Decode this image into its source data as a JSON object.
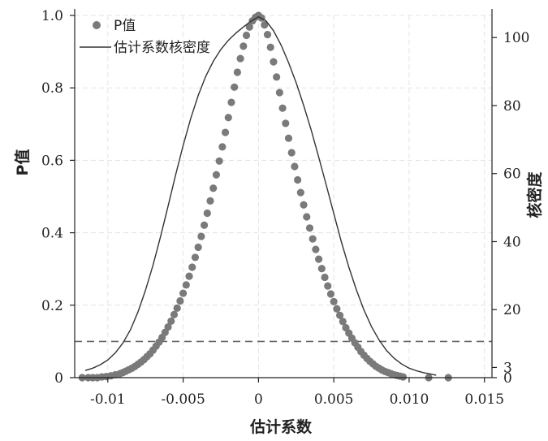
{
  "chart_data": {
    "type": "scatter",
    "xlabel": "估计系数",
    "ylabel_left": "P值",
    "ylabel_right": "核密度",
    "xlim": [
      -0.0122,
      0.0155
    ],
    "ylim_left": [
      0,
      1.0
    ],
    "ylim_right": [
      0,
      106.5
    ],
    "xticks": [
      "-0.01",
      "-0.005",
      "0",
      "0.005",
      "0.010",
      "0.015"
    ],
    "xtick_values": [
      -0.01,
      -0.005,
      0,
      0.005,
      0.01,
      0.015
    ],
    "yticks_left": [
      "0",
      "0.2",
      "0.4",
      "0.6",
      "0.8",
      "1.0"
    ],
    "ytick_values_left": [
      0,
      0.2,
      0.4,
      0.6,
      0.8,
      1.0
    ],
    "yticks_right": [
      "0",
      "3",
      "20",
      "40",
      "60",
      "80",
      "100"
    ],
    "ytick_values_right": [
      0,
      3,
      20,
      40,
      60,
      80,
      100
    ],
    "grid": true,
    "legend_position": "top-left",
    "reference_line": {
      "axis": "left",
      "value": 0.1,
      "style": "dashed"
    },
    "series": [
      {
        "name": "P值",
        "kind": "points",
        "axis": "left",
        "color": "#7a7a7a",
        "x": [
          -0.0117,
          -0.0113,
          -0.011,
          -0.0107,
          -0.0104,
          -0.0101,
          -0.0098,
          -0.0095,
          -0.0092,
          -0.009,
          -0.0088,
          -0.0086,
          -0.0084,
          -0.0082,
          -0.008,
          -0.0078,
          -0.0076,
          -0.0074,
          -0.0072,
          -0.007,
          -0.0068,
          -0.0066,
          -0.0064,
          -0.0062,
          -0.006,
          -0.0058,
          -0.0056,
          -0.0054,
          -0.0052,
          -0.005,
          -0.0048,
          -0.0046,
          -0.0044,
          -0.0042,
          -0.004,
          -0.0038,
          -0.0036,
          -0.0034,
          -0.0032,
          -0.003,
          -0.0028,
          -0.0026,
          -0.0024,
          -0.0022,
          -0.002,
          -0.0018,
          -0.0016,
          -0.0014,
          -0.0012,
          -0.001,
          -0.0008,
          -0.0006,
          -0.0004,
          -0.0002,
          0,
          0.0002,
          0.0004,
          0.0006,
          0.0008,
          0.001,
          0.0012,
          0.0014,
          0.0016,
          0.0018,
          0.002,
          0.0022,
          0.0024,
          0.0026,
          0.0028,
          0.003,
          0.0032,
          0.0034,
          0.0036,
          0.0038,
          0.004,
          0.0042,
          0.0044,
          0.0046,
          0.0048,
          0.005,
          0.0052,
          0.0054,
          0.0056,
          0.0058,
          0.006,
          0.0062,
          0.0064,
          0.0066,
          0.0068,
          0.007,
          0.0072,
          0.0074,
          0.0076,
          0.0078,
          0.008,
          0.0082,
          0.0084,
          0.0086,
          0.0088,
          0.009,
          0.0092,
          0.0094,
          0.0096,
          0.0113,
          0.0126
        ],
        "y": [
          0.0,
          0.0,
          0.0,
          0.0,
          0.002,
          0.003,
          0.005,
          0.008,
          0.011,
          0.014,
          0.018,
          0.022,
          0.026,
          0.031,
          0.037,
          0.043,
          0.05,
          0.058,
          0.066,
          0.076,
          0.087,
          0.098,
          0.111,
          0.125,
          0.14,
          0.156,
          0.174,
          0.192,
          0.212,
          0.233,
          0.256,
          0.28,
          0.305,
          0.332,
          0.36,
          0.39,
          0.421,
          0.454,
          0.488,
          0.523,
          0.56,
          0.598,
          0.637,
          0.677,
          0.718,
          0.76,
          0.802,
          0.843,
          0.881,
          0.915,
          0.945,
          0.968,
          0.985,
          0.995,
          1.0,
          0.993,
          0.974,
          0.947,
          0.912,
          0.872,
          0.83,
          0.787,
          0.744,
          0.702,
          0.661,
          0.621,
          0.583,
          0.546,
          0.511,
          0.477,
          0.444,
          0.413,
          0.383,
          0.354,
          0.327,
          0.301,
          0.277,
          0.253,
          0.231,
          0.21,
          0.19,
          0.172,
          0.155,
          0.138,
          0.123,
          0.109,
          0.096,
          0.084,
          0.072,
          0.062,
          0.053,
          0.045,
          0.038,
          0.031,
          0.026,
          0.021,
          0.017,
          0.014,
          0.011,
          0.008,
          0.006,
          0.004,
          0.002,
          0.0,
          0.0
        ]
      },
      {
        "name": "估计系数核密度",
        "kind": "line",
        "axis": "right",
        "color": "#333333",
        "x": [
          -0.0115,
          -0.011,
          -0.0105,
          -0.01,
          -0.0095,
          -0.009,
          -0.0085,
          -0.008,
          -0.0075,
          -0.007,
          -0.0065,
          -0.006,
          -0.0055,
          -0.005,
          -0.0045,
          -0.004,
          -0.0035,
          -0.003,
          -0.0025,
          -0.002,
          -0.0015,
          -0.001,
          -0.0005,
          0,
          0.0005,
          0.001,
          0.0015,
          0.002,
          0.0025,
          0.003,
          0.0035,
          0.004,
          0.0045,
          0.005,
          0.0055,
          0.006,
          0.0065,
          0.007,
          0.0075,
          0.008,
          0.0085,
          0.009,
          0.0095,
          0.01,
          0.0105,
          0.011,
          0.0115,
          0.0118
        ],
        "y": [
          2.1,
          2.8,
          3.8,
          5.2,
          7.3,
          10.2,
          14.1,
          19.3,
          25.7,
          33.1,
          41.5,
          50.4,
          59.6,
          68.3,
          76.2,
          83.0,
          88.6,
          93.0,
          96.5,
          99.2,
          101.3,
          103.1,
          104.8,
          106.1,
          104.9,
          102.0,
          97.8,
          92.6,
          86.7,
          80.0,
          72.8,
          64.8,
          56.6,
          48.2,
          40.0,
          32.5,
          25.8,
          19.9,
          15.0,
          11.1,
          8.0,
          5.7,
          4.0,
          2.8,
          2.0,
          1.4,
          1.0,
          0.7
        ]
      }
    ]
  }
}
